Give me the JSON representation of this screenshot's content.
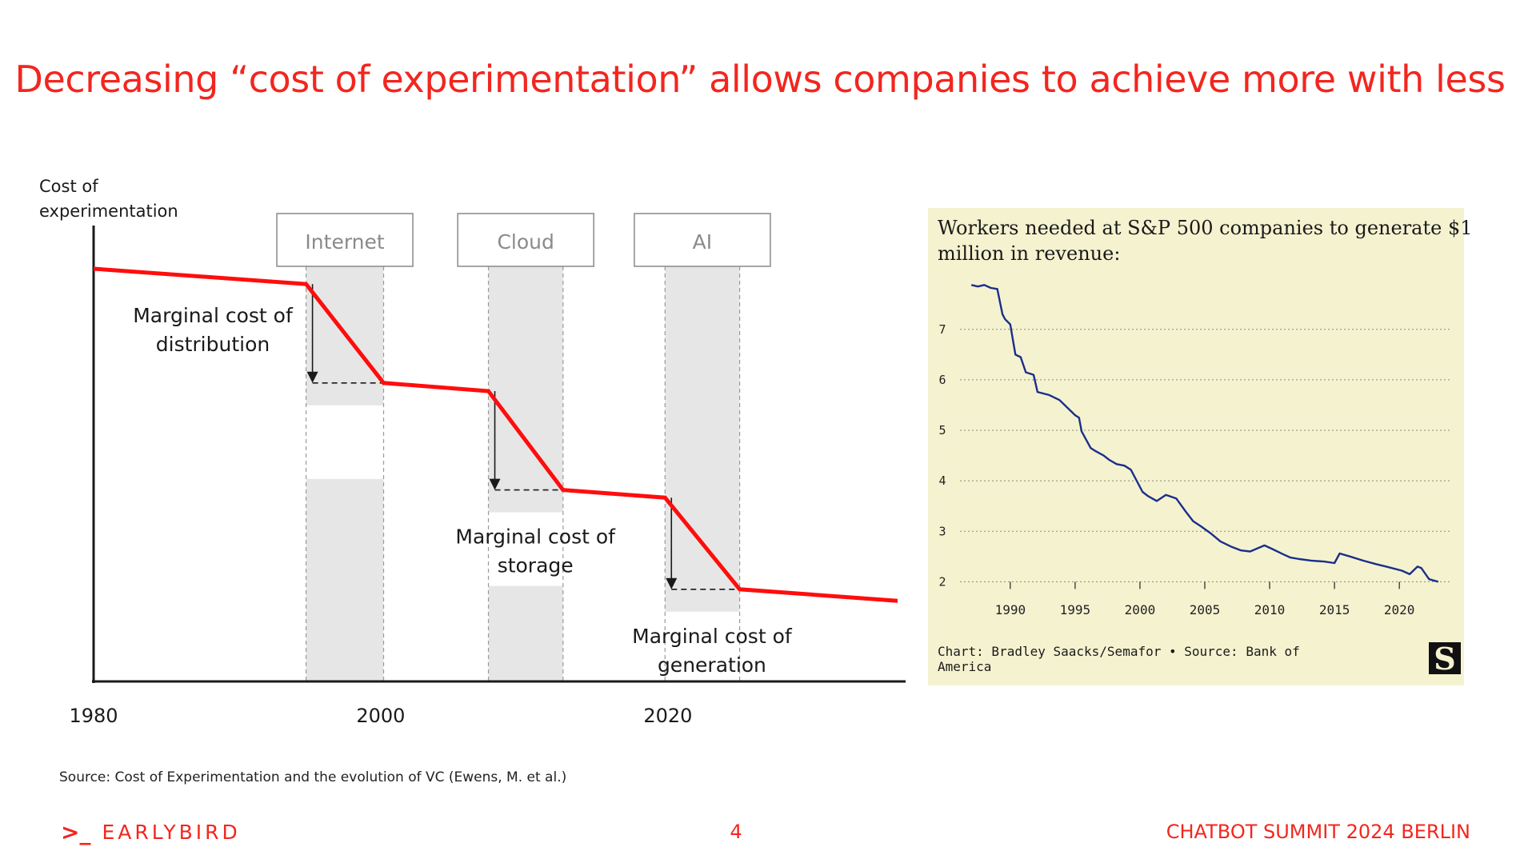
{
  "slide": {
    "title": "Decreasing “cost of experimentation” allows companies to achieve more with less",
    "source": "Source: Cost of Experimentation and the evolution of VC (Ewens, M. et al.)",
    "brand": "EARLYBIRD",
    "brand_glyph": ">_",
    "page_number": "4",
    "event": "CHATBOT SUMMIT 2024 BERLIN",
    "accent_color": "#f2261f"
  },
  "chart_data": [
    {
      "type": "line",
      "ylabel_lines": [
        "Cost of",
        "experimentation"
      ],
      "xlim": [
        1980,
        2036
      ],
      "ylim": [
        0,
        100
      ],
      "x_ticks": [
        {
          "value": 1980,
          "label": "1980"
        },
        {
          "value": 2000,
          "label": "2000"
        },
        {
          "value": 2020,
          "label": "2020"
        }
      ],
      "series": [
        {
          "color": "#ff0d0d",
          "points": [
            [
              1980,
              86
            ],
            [
              1994.8,
              82.8
            ],
            [
              2000.2,
              62.2
            ],
            [
              2007.5,
              60.5
            ],
            [
              2012.7,
              39.9
            ],
            [
              2019.8,
              38.3
            ],
            [
              2025,
              19.2
            ],
            [
              2036,
              16.8
            ]
          ]
        }
      ],
      "eras": [
        {
          "label": "Internet",
          "x_start": 1994.8,
          "x_end": 2000.2,
          "annotation_lines": [
            "Marginal cost of",
            "distribution"
          ],
          "drop_from": 82.8,
          "drop_to": 62.2
        },
        {
          "label": "Cloud",
          "x_start": 2007.5,
          "x_end": 2012.7,
          "annotation_lines": [
            "Marginal cost of",
            "storage"
          ],
          "drop_from": 60.5,
          "drop_to": 39.9
        },
        {
          "label": "AI",
          "x_start": 2019.8,
          "x_end": 2025,
          "annotation_lines": [
            "Marginal cost of",
            "generation"
          ],
          "drop_from": 38.3,
          "drop_to": 19.2
        }
      ],
      "era_fill": "#e6e6e6",
      "era_box_color": "#888888"
    },
    {
      "type": "line",
      "title_lines": [
        "Workers needed at S&P 500 companies to generate $1",
        "million in revenue:"
      ],
      "credit_lines": [
        "Chart: Bradley Saacks/Semafor • Source: Bank of",
        "America"
      ],
      "logo_letter": "S",
      "background": "#f5f2d0",
      "line_color": "#1a2f8a",
      "xlim": [
        1986,
        2024
      ],
      "ylim": [
        1.8,
        7.9
      ],
      "x_ticks": [
        1990,
        1995,
        2000,
        2005,
        2010,
        2015,
        2020
      ],
      "y_ticks": [
        2,
        3,
        4,
        5,
        6,
        7
      ],
      "grid": true,
      "x": [
        1987,
        1987.5,
        1988,
        1988.5,
        1989,
        1989.4,
        1989.6,
        1990,
        1990.4,
        1990.8,
        1991.2,
        1991.8,
        1992.1,
        1993,
        1993.8,
        1994.2,
        1995,
        1995.3,
        1995.5,
        1996.2,
        1996.5,
        1997.2,
        1997.6,
        1998.2,
        1998.8,
        1999.3,
        2000.2,
        2000.6,
        2001.3,
        2002,
        2002.8,
        2003.5,
        2004.1,
        2004.7,
        2005.5,
        2006.2,
        2007,
        2007.8,
        2008.5,
        2009.6,
        2010.2,
        2011,
        2011.6,
        2012.3,
        2013.2,
        2014.2,
        2015,
        2015.4,
        2016.2,
        2017.2,
        2018.2,
        2019,
        2020.2,
        2020.8,
        2021.4,
        2021.7,
        2022.3,
        2023
      ],
      "y": [
        7.88,
        7.85,
        7.88,
        7.82,
        7.8,
        7.3,
        7.2,
        7.1,
        6.5,
        6.45,
        6.15,
        6.1,
        5.76,
        5.7,
        5.6,
        5.5,
        5.3,
        5.25,
        4.98,
        4.65,
        4.6,
        4.5,
        4.42,
        4.33,
        4.3,
        4.22,
        3.78,
        3.7,
        3.6,
        3.72,
        3.65,
        3.4,
        3.2,
        3.1,
        2.95,
        2.8,
        2.7,
        2.62,
        2.6,
        2.72,
        2.65,
        2.55,
        2.48,
        2.45,
        2.42,
        2.4,
        2.37,
        2.56,
        2.5,
        2.42,
        2.35,
        2.3,
        2.22,
        2.15,
        2.3,
        2.27,
        2.05,
        2.0
      ]
    }
  ]
}
